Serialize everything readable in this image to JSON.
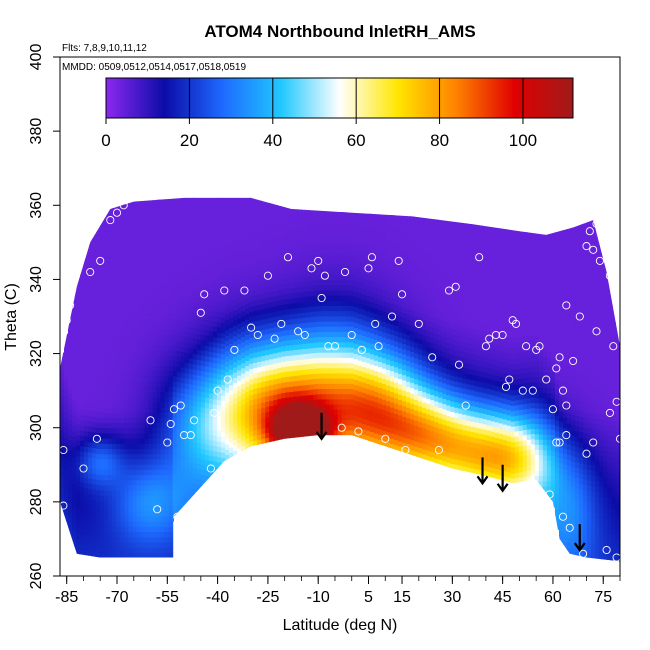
{
  "chart_data": {
    "type": "heatmap",
    "title": "ATOM4 Northbound InletRH_AMS",
    "subtitle_flights": "Flts: 7,8,9,10,11,12",
    "subtitle_dates": "MMDD: 0509,0512,0514,0517,0518,0519",
    "xlabel": "Latitude (deg N)",
    "ylabel": "Theta (C)",
    "xlim": [
      -87,
      80
    ],
    "ylim": [
      260,
      400
    ],
    "x_ticks": [
      -85,
      -70,
      -55,
      -40,
      -25,
      -10,
      5,
      15,
      30,
      45,
      60,
      75
    ],
    "y_ticks": [
      260,
      280,
      300,
      320,
      340,
      360,
      380,
      400
    ],
    "colorbar": {
      "range": [
        0,
        112
      ],
      "ticks": [
        0,
        20,
        40,
        60,
        80,
        100
      ],
      "colors": [
        "#8c28f0",
        "#0c0ca8",
        "#1e6aff",
        "#20c8ff",
        "#ffffff",
        "#ffe600",
        "#ff8200",
        "#e00000",
        "#a01a1a"
      ]
    },
    "field_lower_boundary": [
      {
        "lat": -87,
        "theta": 280
      },
      {
        "lat": -82,
        "theta": 266
      },
      {
        "lat": -75,
        "theta": 265
      },
      {
        "lat": -66,
        "theta": 265
      },
      {
        "lat": -53,
        "theta": 265
      },
      {
        "lat": -53,
        "theta": 276
      },
      {
        "lat": -46,
        "theta": 283
      },
      {
        "lat": -38,
        "theta": 291
      },
      {
        "lat": -30,
        "theta": 295
      },
      {
        "lat": -20,
        "theta": 297
      },
      {
        "lat": -10,
        "theta": 298
      },
      {
        "lat": 0,
        "theta": 298
      },
      {
        "lat": 10,
        "theta": 295
      },
      {
        "lat": 20,
        "theta": 292
      },
      {
        "lat": 30,
        "theta": 289
      },
      {
        "lat": 40,
        "theta": 287
      },
      {
        "lat": 48,
        "theta": 285
      },
      {
        "lat": 55,
        "theta": 286
      },
      {
        "lat": 60,
        "theta": 280
      },
      {
        "lat": 62,
        "theta": 270
      },
      {
        "lat": 65,
        "theta": 266
      },
      {
        "lat": 70,
        "theta": 265
      },
      {
        "lat": 80,
        "theta": 264
      }
    ],
    "field_upper_boundary": [
      {
        "lat": -87,
        "theta": 316
      },
      {
        "lat": -82,
        "theta": 338
      },
      {
        "lat": -78,
        "theta": 350
      },
      {
        "lat": -72,
        "theta": 359
      },
      {
        "lat": -65,
        "theta": 361
      },
      {
        "lat": -50,
        "theta": 362
      },
      {
        "lat": -30,
        "theta": 362
      },
      {
        "lat": -18,
        "theta": 359
      },
      {
        "lat": 0,
        "theta": 358
      },
      {
        "lat": 18,
        "theta": 357
      },
      {
        "lat": 35,
        "theta": 355
      },
      {
        "lat": 50,
        "theta": 353
      },
      {
        "lat": 58,
        "theta": 352
      },
      {
        "lat": 66,
        "theta": 354
      },
      {
        "lat": 72,
        "theta": 356
      },
      {
        "lat": 76,
        "theta": 342
      },
      {
        "lat": 80,
        "theta": 322
      }
    ],
    "rh_features": [
      {
        "lat": -75,
        "theta": 291,
        "rh": 18,
        "sx": 5,
        "sy": 5
      },
      {
        "lat": -60,
        "theta": 280,
        "rh": 20,
        "sx": 8,
        "sy": 8
      },
      {
        "lat": -44,
        "theta": 300,
        "rh": 25,
        "sx": 10,
        "sy": 12
      },
      {
        "lat": -30,
        "theta": 310,
        "rh": 22,
        "sx": 10,
        "sy": 12
      },
      {
        "lat": -18,
        "theta": 302,
        "rh": 60,
        "sx": 11,
        "sy": 11
      },
      {
        "lat": -15,
        "theta": 299,
        "rh": 80,
        "sx": 5,
        "sy": 4
      },
      {
        "lat": -5,
        "theta": 312,
        "rh": 30,
        "sx": 12,
        "sy": 14
      },
      {
        "lat": 8,
        "theta": 305,
        "rh": 48,
        "sx": 10,
        "sy": 10
      },
      {
        "lat": 22,
        "theta": 298,
        "rh": 45,
        "sx": 10,
        "sy": 8
      },
      {
        "lat": 38,
        "theta": 293,
        "rh": 42,
        "sx": 10,
        "sy": 8
      },
      {
        "lat": 50,
        "theta": 291,
        "rh": 35,
        "sx": 8,
        "sy": 9
      },
      {
        "lat": 65,
        "theta": 278,
        "rh": 18,
        "sx": 6,
        "sy": 12
      }
    ],
    "observation_points": [
      {
        "lat": -86,
        "theta": 279
      },
      {
        "lat": -86,
        "theta": 294
      },
      {
        "lat": -85,
        "theta": 329
      },
      {
        "lat": -84,
        "theta": 333
      },
      {
        "lat": -80,
        "theta": 289
      },
      {
        "lat": -76,
        "theta": 297
      },
      {
        "lat": -78,
        "theta": 342
      },
      {
        "lat": -75,
        "theta": 345
      },
      {
        "lat": -72,
        "theta": 356
      },
      {
        "lat": -70,
        "theta": 358
      },
      {
        "lat": -68,
        "theta": 360
      },
      {
        "lat": -58,
        "theta": 278
      },
      {
        "lat": -60,
        "theta": 302
      },
      {
        "lat": -55,
        "theta": 296
      },
      {
        "lat": -54,
        "theta": 301
      },
      {
        "lat": -53,
        "theta": 305
      },
      {
        "lat": -52,
        "theta": 276
      },
      {
        "lat": -51,
        "theta": 306
      },
      {
        "lat": -50,
        "theta": 298
      },
      {
        "lat": -48,
        "theta": 298
      },
      {
        "lat": -47,
        "theta": 302
      },
      {
        "lat": -45,
        "theta": 331
      },
      {
        "lat": -44,
        "theta": 336
      },
      {
        "lat": -42,
        "theta": 289
      },
      {
        "lat": -41,
        "theta": 304
      },
      {
        "lat": -40,
        "theta": 310
      },
      {
        "lat": -38,
        "theta": 337
      },
      {
        "lat": -37,
        "theta": 313
      },
      {
        "lat": -35,
        "theta": 321
      },
      {
        "lat": -32,
        "theta": 337
      },
      {
        "lat": -30,
        "theta": 327
      },
      {
        "lat": -28,
        "theta": 325
      },
      {
        "lat": -25,
        "theta": 341
      },
      {
        "lat": -23,
        "theta": 324
      },
      {
        "lat": -21,
        "theta": 328
      },
      {
        "lat": -19,
        "theta": 346
      },
      {
        "lat": -16,
        "theta": 326
      },
      {
        "lat": -14,
        "theta": 325
      },
      {
        "lat": -12,
        "theta": 343
      },
      {
        "lat": -10,
        "theta": 345
      },
      {
        "lat": -9,
        "theta": 335
      },
      {
        "lat": -8,
        "theta": 341
      },
      {
        "lat": -7,
        "theta": 322
      },
      {
        "lat": -5,
        "theta": 322
      },
      {
        "lat": -3,
        "theta": 300
      },
      {
        "lat": -2,
        "theta": 342
      },
      {
        "lat": 0,
        "theta": 325
      },
      {
        "lat": 2,
        "theta": 299
      },
      {
        "lat": 3,
        "theta": 321
      },
      {
        "lat": 5,
        "theta": 343
      },
      {
        "lat": 6,
        "theta": 346
      },
      {
        "lat": 7,
        "theta": 328
      },
      {
        "lat": 8,
        "theta": 322
      },
      {
        "lat": 10,
        "theta": 297
      },
      {
        "lat": 12,
        "theta": 330
      },
      {
        "lat": 14,
        "theta": 345
      },
      {
        "lat": 15,
        "theta": 336
      },
      {
        "lat": 16,
        "theta": 294
      },
      {
        "lat": 20,
        "theta": 328
      },
      {
        "lat": 24,
        "theta": 319
      },
      {
        "lat": 26,
        "theta": 294
      },
      {
        "lat": 29,
        "theta": 337
      },
      {
        "lat": 31,
        "theta": 338
      },
      {
        "lat": 32,
        "theta": 317
      },
      {
        "lat": 34,
        "theta": 306
      },
      {
        "lat": 38,
        "theta": 346
      },
      {
        "lat": 40,
        "theta": 322
      },
      {
        "lat": 41,
        "theta": 324
      },
      {
        "lat": 43,
        "theta": 325
      },
      {
        "lat": 45,
        "theta": 325
      },
      {
        "lat": 46,
        "theta": 311
      },
      {
        "lat": 47,
        "theta": 313
      },
      {
        "lat": 48,
        "theta": 329
      },
      {
        "lat": 49,
        "theta": 328
      },
      {
        "lat": 51,
        "theta": 310
      },
      {
        "lat": 52,
        "theta": 322
      },
      {
        "lat": 53,
        "theta": 285
      },
      {
        "lat": 54,
        "theta": 310
      },
      {
        "lat": 55,
        "theta": 321
      },
      {
        "lat": 56,
        "theta": 322
      },
      {
        "lat": 58,
        "theta": 313
      },
      {
        "lat": 59,
        "theta": 282
      },
      {
        "lat": 60,
        "theta": 305
      },
      {
        "lat": 61,
        "theta": 296
      },
      {
        "lat": 61,
        "theta": 316
      },
      {
        "lat": 62,
        "theta": 319
      },
      {
        "lat": 62,
        "theta": 296
      },
      {
        "lat": 63,
        "theta": 310
      },
      {
        "lat": 63,
        "theta": 276
      },
      {
        "lat": 64,
        "theta": 298
      },
      {
        "lat": 64,
        "theta": 306
      },
      {
        "lat": 64,
        "theta": 333
      },
      {
        "lat": 65,
        "theta": 273
      },
      {
        "lat": 66,
        "theta": 318
      },
      {
        "lat": 68,
        "theta": 330
      },
      {
        "lat": 69,
        "theta": 266
      },
      {
        "lat": 70,
        "theta": 349
      },
      {
        "lat": 70,
        "theta": 293
      },
      {
        "lat": 71,
        "theta": 353
      },
      {
        "lat": 72,
        "theta": 296
      },
      {
        "lat": 72,
        "theta": 348
      },
      {
        "lat": 73,
        "theta": 355
      },
      {
        "lat": 73,
        "theta": 326
      },
      {
        "lat": 74,
        "theta": 345
      },
      {
        "lat": 75,
        "theta": 353
      },
      {
        "lat": 76,
        "theta": 267
      },
      {
        "lat": 77,
        "theta": 304
      },
      {
        "lat": 77,
        "theta": 341
      },
      {
        "lat": 78,
        "theta": 322
      },
      {
        "lat": 79,
        "theta": 307
      },
      {
        "lat": 79,
        "theta": 265
      },
      {
        "lat": 80,
        "theta": 297
      }
    ],
    "arrows": [
      {
        "lat": -9,
        "theta": 304
      },
      {
        "lat": 39,
        "theta": 292
      },
      {
        "lat": 45,
        "theta": 290
      },
      {
        "lat": 68,
        "theta": 274
      }
    ]
  }
}
